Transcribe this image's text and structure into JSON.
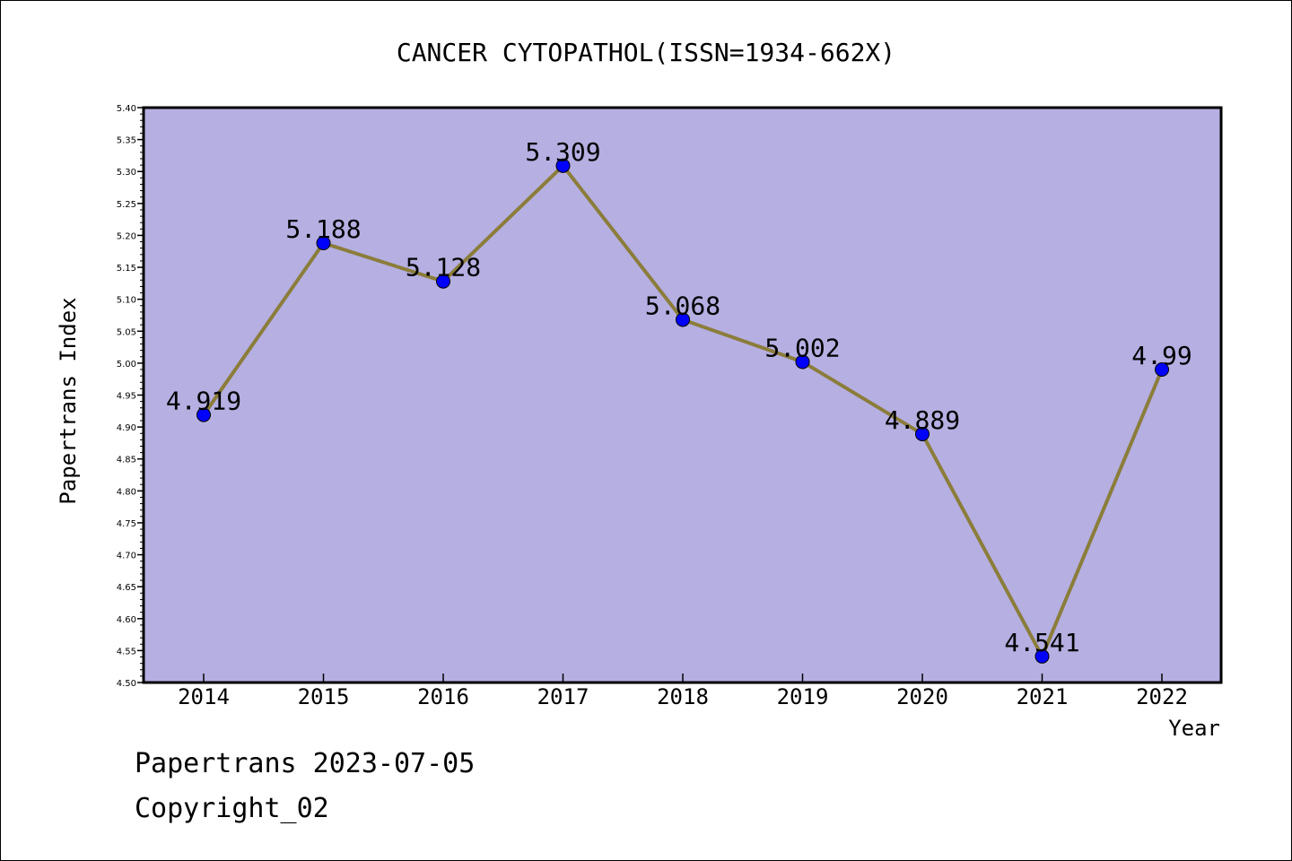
{
  "chart_data": {
    "type": "line",
    "title": "CANCER CYTOPATHOL(ISSN=1934-662X)",
    "xlabel": "Year",
    "ylabel": "Papertrans Index",
    "categories": [
      "2014",
      "2015",
      "2016",
      "2017",
      "2018",
      "2019",
      "2020",
      "2021",
      "2022"
    ],
    "series": [
      {
        "values": [
          4.919,
          5.188,
          5.128,
          5.309,
          5.068,
          5.002,
          4.889,
          4.541,
          4.99
        ],
        "labels": [
          "4.919",
          "5.188",
          "5.128",
          "5.309",
          "5.068",
          "5.002",
          "4.889",
          "4.541",
          "4.99"
        ],
        "line_color": "#8B7D3A",
        "marker_color": "#0000FF"
      }
    ],
    "ylim": [
      4.5,
      5.4
    ],
    "yticks": [
      "4.50",
      "4.55",
      "4.60",
      "4.65",
      "4.70",
      "4.75",
      "4.80",
      "4.85",
      "4.90",
      "4.95",
      "5.00",
      "5.05",
      "5.10",
      "5.15",
      "5.20",
      "5.25",
      "5.30",
      "5.35",
      "5.40"
    ],
    "grid": false,
    "legend": "none",
    "plot_background": "#B5AFE2"
  },
  "footer": {
    "line1": "Papertrans 2023-07-05",
    "line2": "Copyright_02"
  }
}
